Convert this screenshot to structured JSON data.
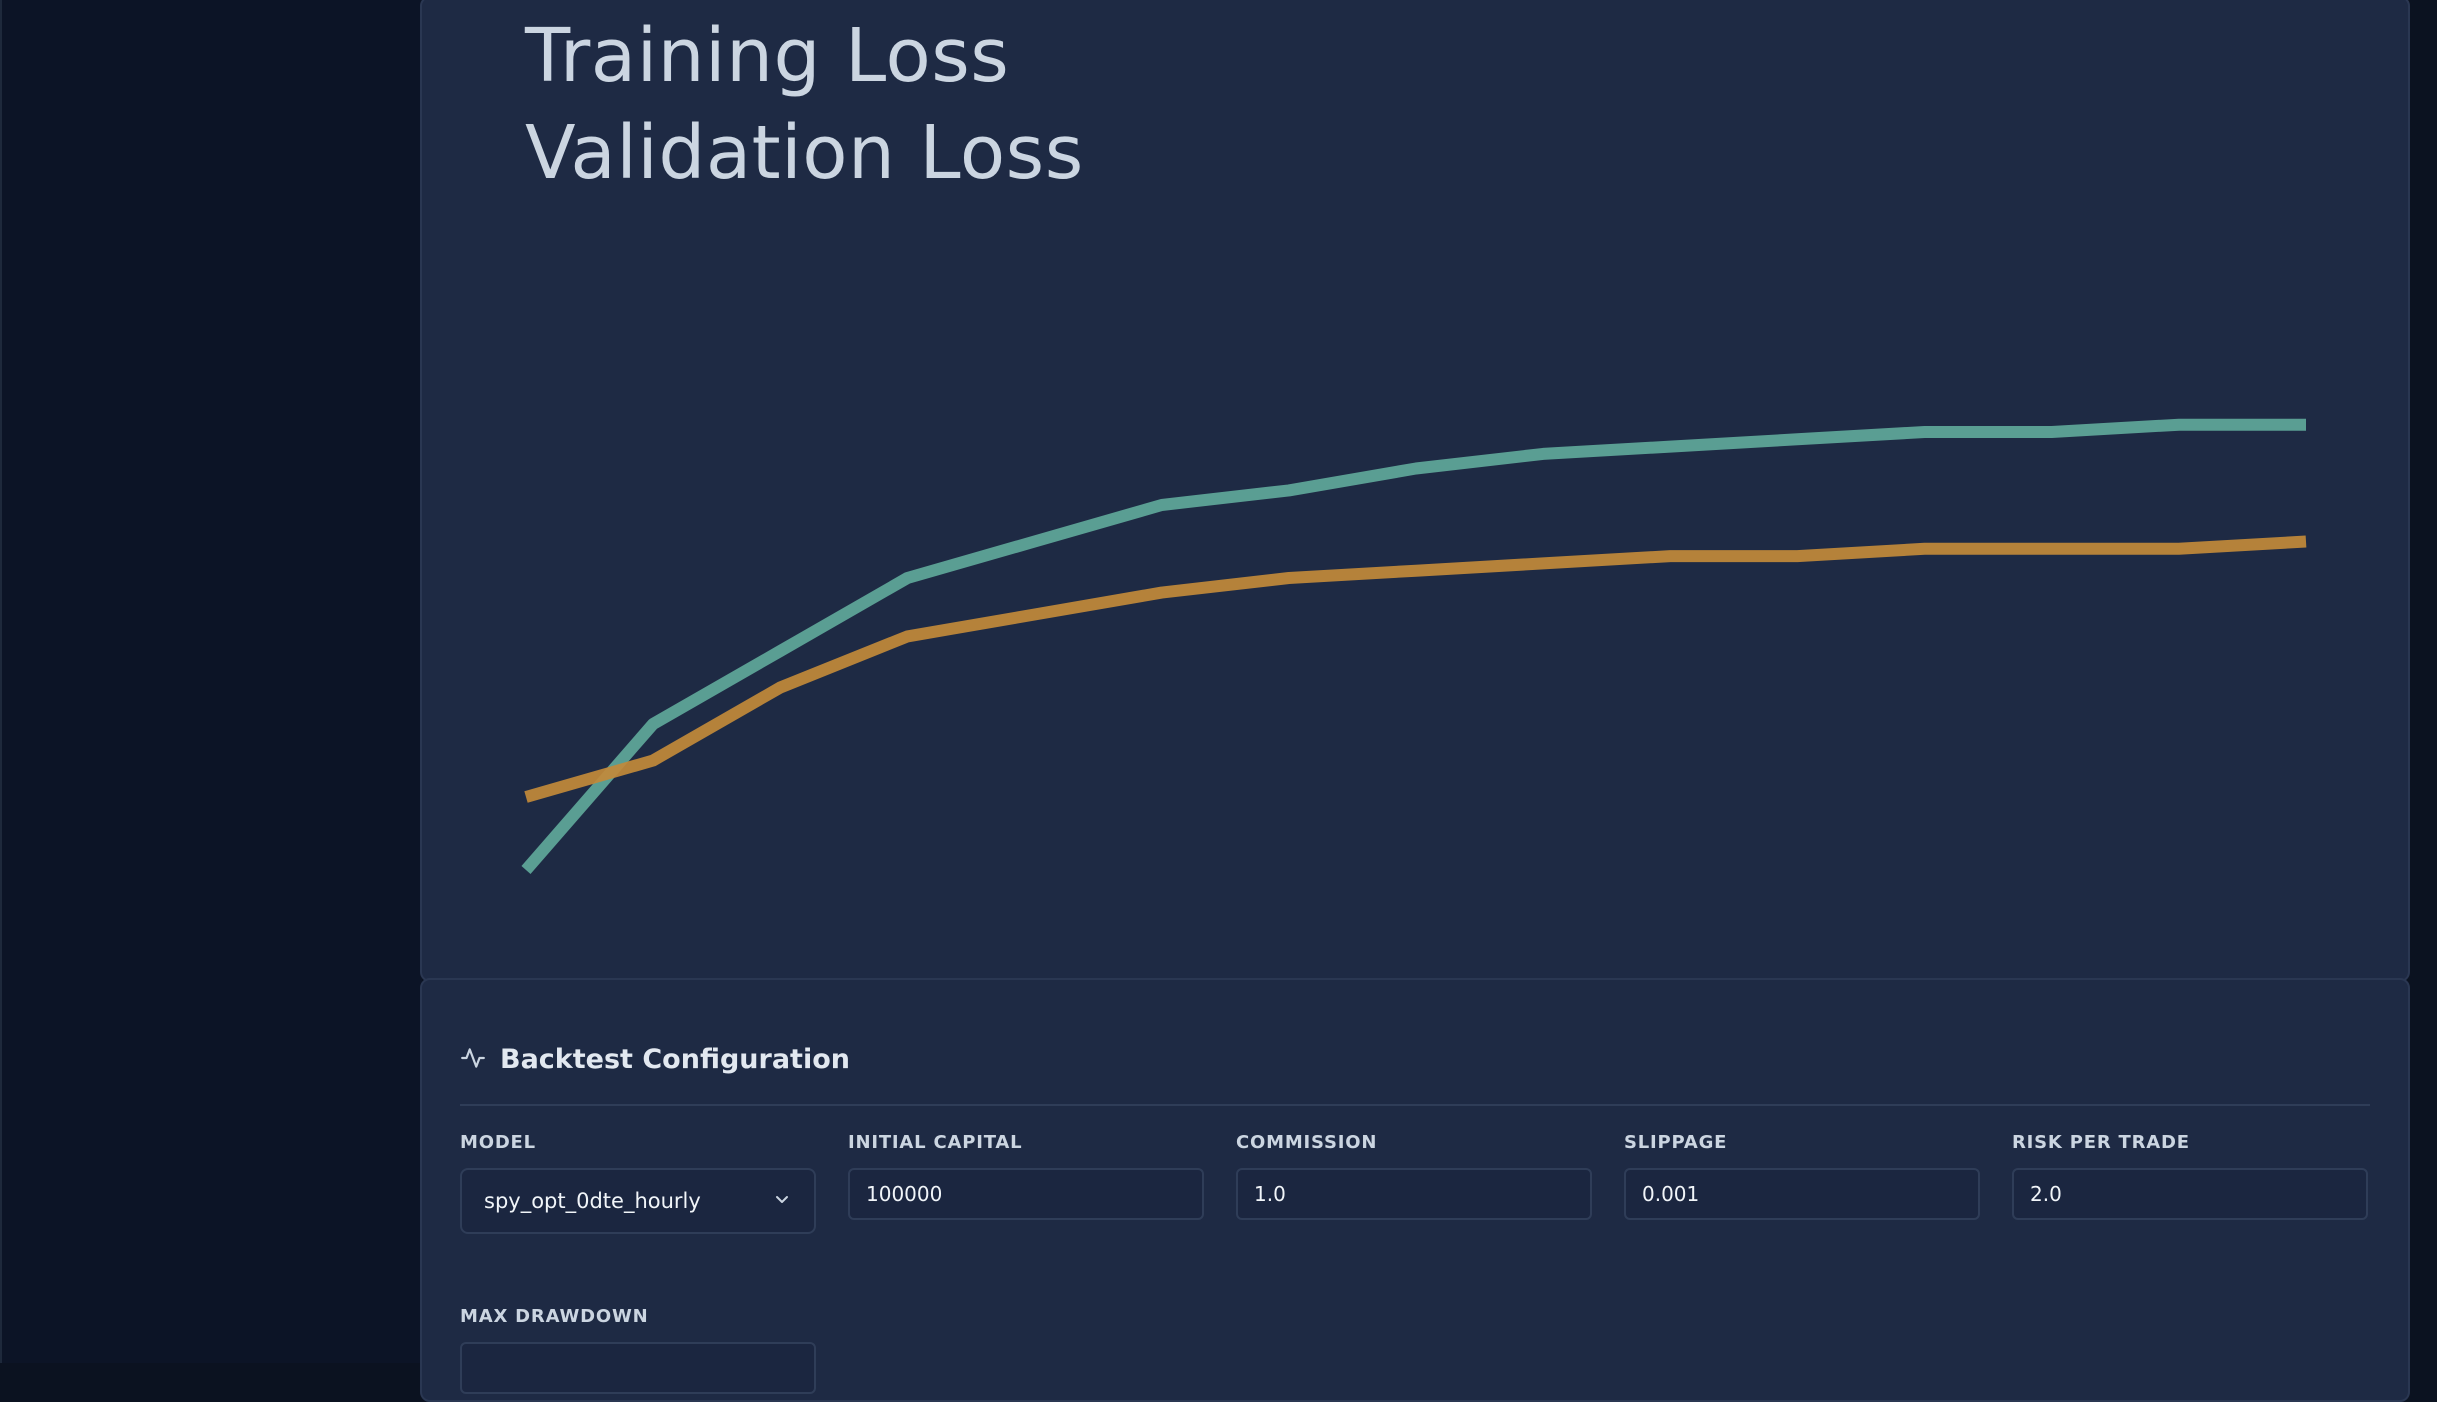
{
  "chart": {
    "legend": [
      "Training Loss",
      "Validation Loss"
    ],
    "colors": {
      "training": "#5fa89a",
      "validation": "#c28a3a"
    }
  },
  "chart_data": {
    "type": "line",
    "title": "",
    "xlabel": "",
    "ylabel": "",
    "grid": false,
    "legend_position": "top-left",
    "x": [
      1,
      2,
      3,
      4,
      5,
      6,
      7,
      8,
      9,
      10,
      11,
      12,
      13,
      14,
      15
    ],
    "ylim": [
      0,
      1
    ],
    "series": [
      {
        "name": "Training Loss",
        "color": "#5fa89a",
        "values": [
          0.0,
          0.2,
          0.3,
          0.4,
          0.45,
          0.5,
          0.52,
          0.55,
          0.57,
          0.58,
          0.59,
          0.6,
          0.6,
          0.61,
          0.61
        ]
      },
      {
        "name": "Validation Loss",
        "color": "#c28a3a",
        "values": [
          0.1,
          0.15,
          0.25,
          0.32,
          0.35,
          0.38,
          0.4,
          0.41,
          0.42,
          0.43,
          0.43,
          0.44,
          0.44,
          0.44,
          0.45
        ]
      }
    ]
  },
  "backtest": {
    "title": "Backtest Configuration",
    "icon": "activity-icon",
    "fields": {
      "model": {
        "label": "MODEL",
        "value": "spy_opt_0dte_hourly"
      },
      "initial_capital": {
        "label": "INITIAL CAPITAL",
        "value": "100000"
      },
      "commission": {
        "label": "COMMISSION",
        "value": "1.0"
      },
      "slippage": {
        "label": "SLIPPAGE",
        "value": "0.001"
      },
      "risk_per_trade": {
        "label": "RISK PER TRADE",
        "value": "2.0"
      },
      "max_drawdown": {
        "label": "MAX DRAWDOWN"
      }
    }
  }
}
